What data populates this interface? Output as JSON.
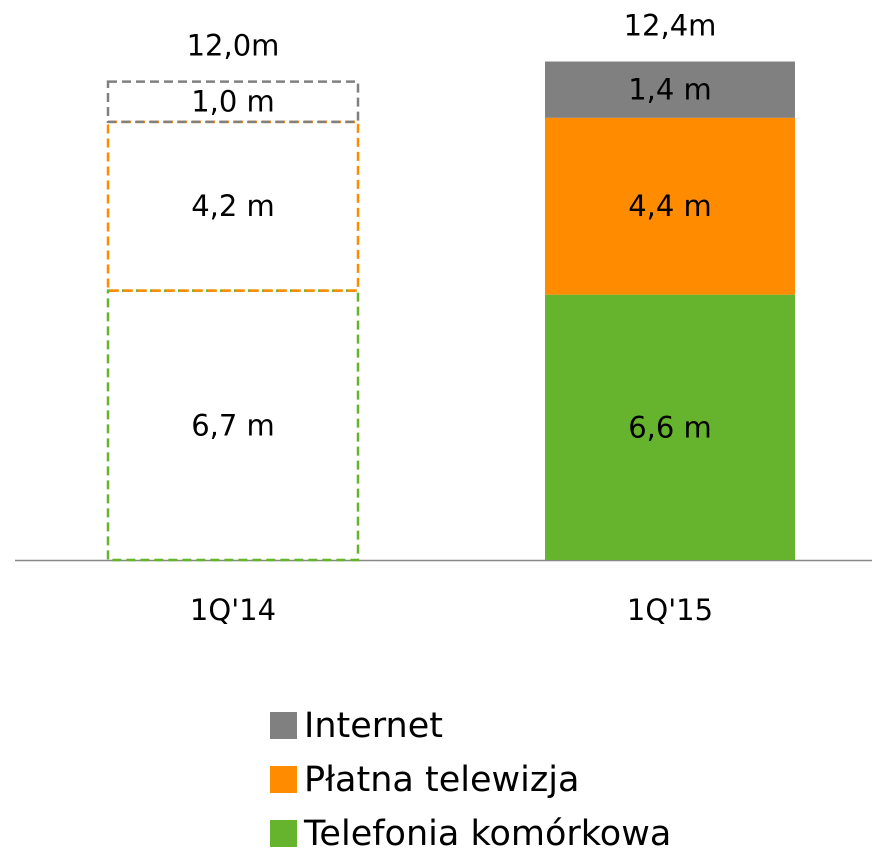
{
  "chart_data": {
    "type": "stacked_bar",
    "categories": [
      "1Q'14",
      "1Q'15"
    ],
    "series": [
      {
        "name": "Telefonia komórkowa",
        "color": "#66b32e",
        "values": [
          6.7,
          6.6
        ],
        "value_labels": [
          "6,7 m",
          "6,6 m"
        ]
      },
      {
        "name": "Płatna telewizja",
        "color": "#ff8c00",
        "values": [
          4.2,
          4.4
        ],
        "value_labels": [
          "4,2 m",
          "4,4 m"
        ]
      },
      {
        "name": "Internet",
        "color": "#808080",
        "values": [
          1.0,
          1.4
        ],
        "value_labels": [
          "1,0 m",
          "1,4 m"
        ]
      }
    ],
    "totals": [
      12.0,
      12.4
    ],
    "total_labels": [
      "12,0m",
      "12,4m"
    ],
    "bar_styles": [
      "dashed",
      "filled"
    ]
  }
}
